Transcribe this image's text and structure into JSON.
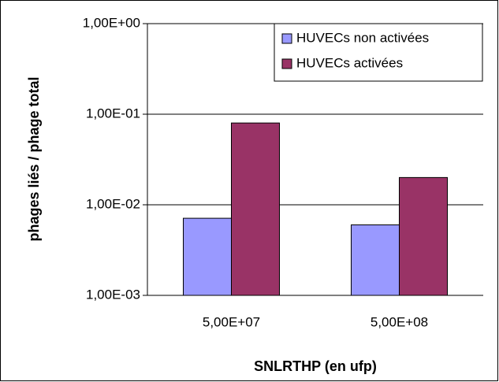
{
  "chart_data": {
    "type": "bar",
    "categories": [
      "5,00E+07",
      "5,00E+08"
    ],
    "series": [
      {
        "name": "HUVECs non activées",
        "color": "#9999ff",
        "values": [
          0.0071,
          0.006
        ]
      },
      {
        "name": "HUVECs activées",
        "color": "#993366",
        "values": [
          0.08,
          0.02
        ]
      }
    ],
    "xlabel": "SNLRTHP (en ufp)",
    "ylabel": "phages liés / phage total",
    "yscale": "log",
    "ylim": [
      0.001,
      1
    ],
    "yticks": [
      {
        "value": 0.001,
        "label": "1,00E-03"
      },
      {
        "value": 0.01,
        "label": "1,00E-02"
      },
      {
        "value": 0.1,
        "label": "1,00E-01"
      },
      {
        "value": 1,
        "label": "1,00E+00"
      }
    ],
    "grid": true,
    "legend": "top-right"
  }
}
